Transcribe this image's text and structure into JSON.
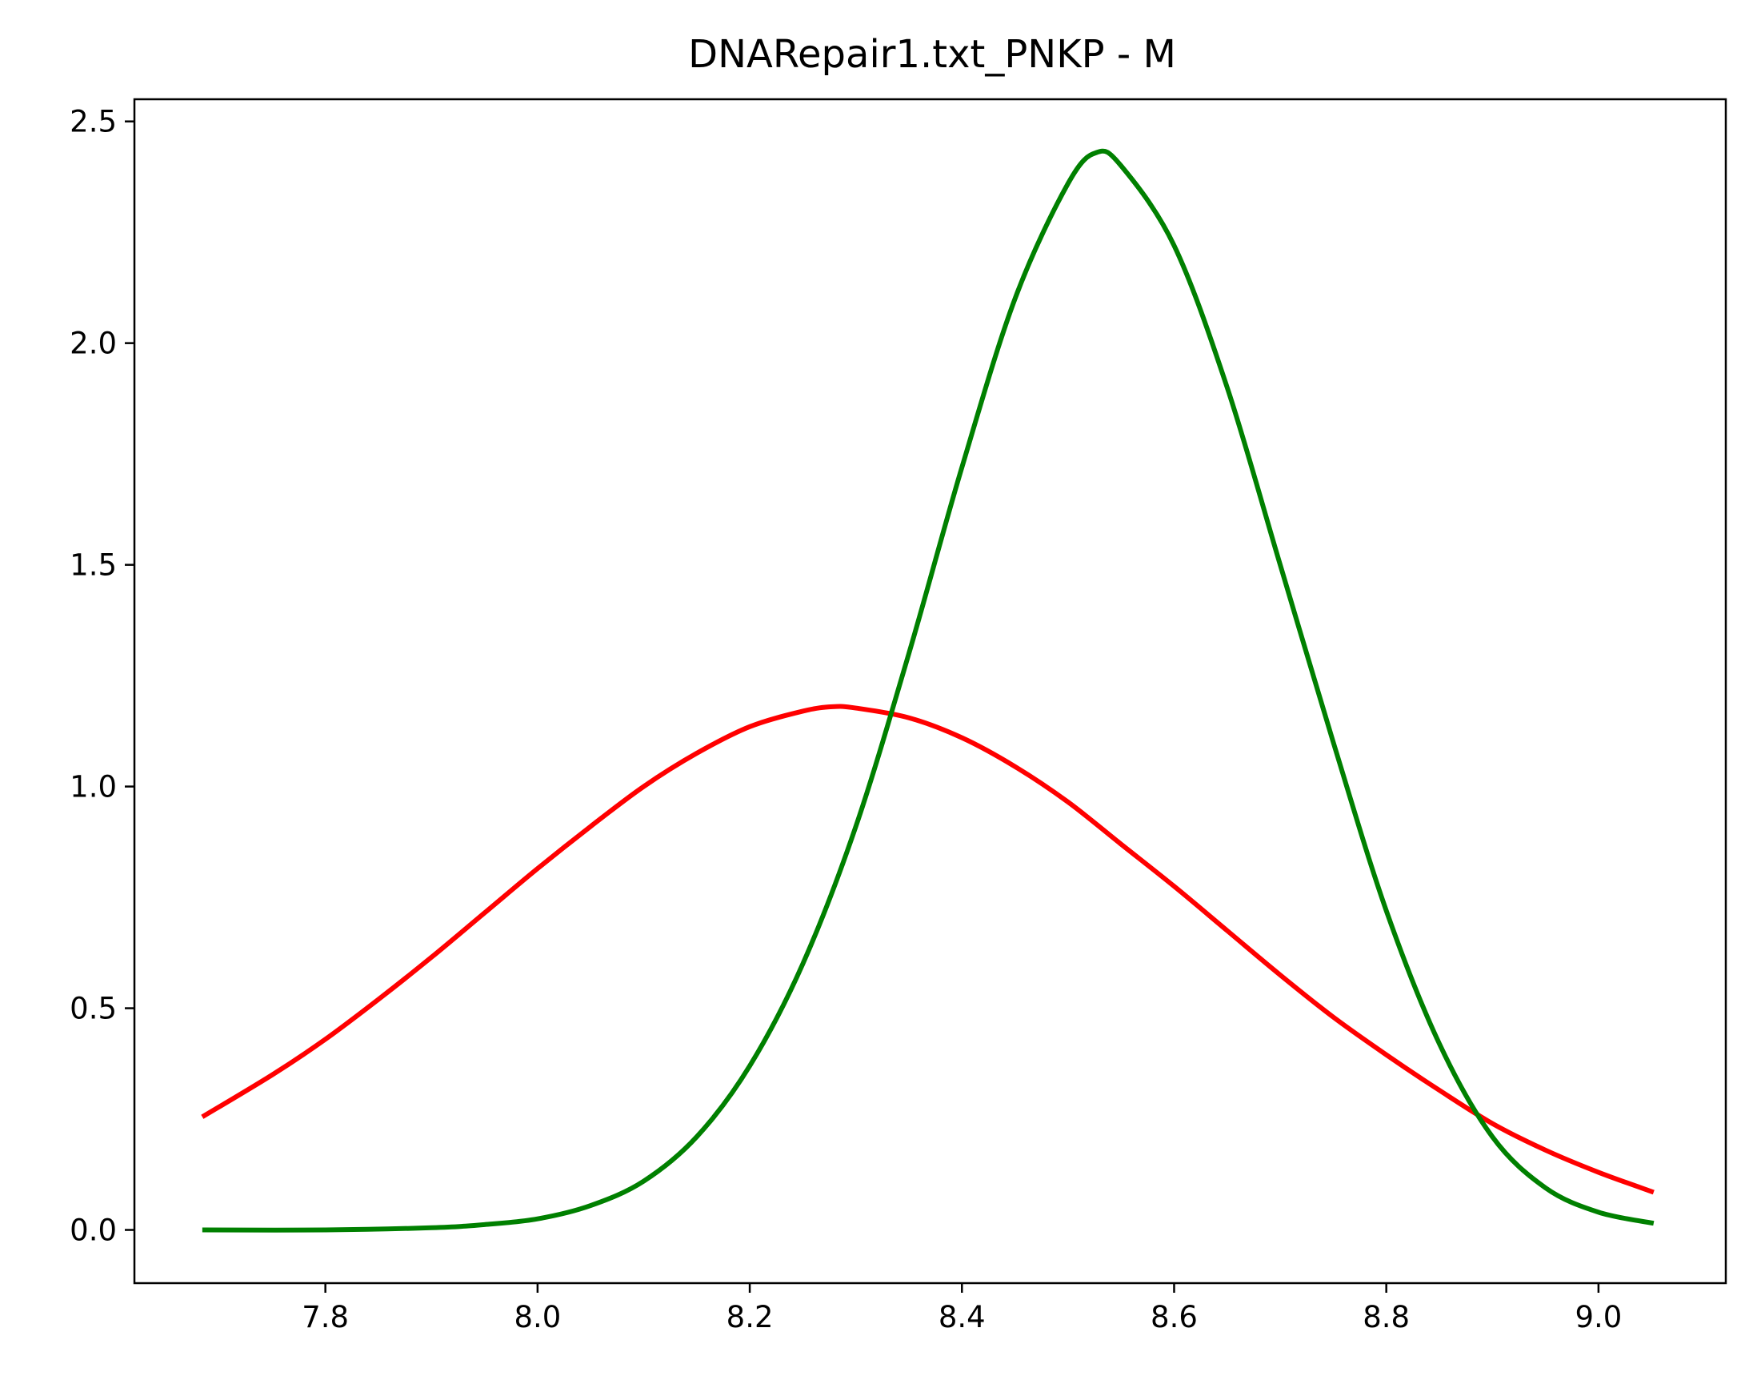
{
  "chart_data": {
    "type": "line",
    "title": "DNARepair1.txt_PNKP - M",
    "xlabel": "",
    "ylabel": "",
    "xlim": [
      7.62,
      9.12
    ],
    "ylim": [
      -0.12,
      2.55
    ],
    "xticks": [
      7.8,
      8.0,
      8.2,
      8.4,
      8.6,
      8.8,
      9.0
    ],
    "xtick_labels": [
      "7.8",
      "8.0",
      "8.2",
      "8.4",
      "8.6",
      "8.8",
      "9.0"
    ],
    "yticks": [
      0.0,
      0.5,
      1.0,
      1.5,
      2.0,
      2.5
    ],
    "ytick_labels": [
      "0.0",
      "0.5",
      "1.0",
      "1.5",
      "2.0",
      "2.5"
    ],
    "grid": false,
    "legend": "none",
    "series": [
      {
        "color": "#ff0000",
        "points": [
          [
            7.684,
            0.255
          ],
          [
            7.75,
            0.35
          ],
          [
            7.8,
            0.43
          ],
          [
            7.85,
            0.52
          ],
          [
            7.9,
            0.615
          ],
          [
            7.95,
            0.715
          ],
          [
            8.0,
            0.815
          ],
          [
            8.05,
            0.91
          ],
          [
            8.1,
            1.0
          ],
          [
            8.15,
            1.075
          ],
          [
            8.2,
            1.135
          ],
          [
            8.25,
            1.17
          ],
          [
            8.278,
            1.18
          ],
          [
            8.3,
            1.177
          ],
          [
            8.35,
            1.155
          ],
          [
            8.4,
            1.11
          ],
          [
            8.45,
            1.045
          ],
          [
            8.5,
            0.965
          ],
          [
            8.55,
            0.87
          ],
          [
            8.6,
            0.775
          ],
          [
            8.65,
            0.675
          ],
          [
            8.7,
            0.575
          ],
          [
            8.75,
            0.48
          ],
          [
            8.8,
            0.395
          ],
          [
            8.85,
            0.315
          ],
          [
            8.9,
            0.24
          ],
          [
            8.95,
            0.18
          ],
          [
            9.0,
            0.13
          ],
          [
            9.052,
            0.085
          ]
        ]
      },
      {
        "color": "#008000",
        "points": [
          [
            7.684,
            0.0
          ],
          [
            7.8,
            0.0
          ],
          [
            7.9,
            0.005
          ],
          [
            7.95,
            0.012
          ],
          [
            8.0,
            0.025
          ],
          [
            8.05,
            0.055
          ],
          [
            8.1,
            0.11
          ],
          [
            8.15,
            0.21
          ],
          [
            8.2,
            0.37
          ],
          [
            8.25,
            0.6
          ],
          [
            8.3,
            0.91
          ],
          [
            8.35,
            1.3
          ],
          [
            8.4,
            1.72
          ],
          [
            8.45,
            2.1
          ],
          [
            8.5,
            2.36
          ],
          [
            8.527,
            2.43
          ],
          [
            8.55,
            2.4
          ],
          [
            8.6,
            2.22
          ],
          [
            8.65,
            1.9
          ],
          [
            8.7,
            1.5
          ],
          [
            8.75,
            1.1
          ],
          [
            8.8,
            0.72
          ],
          [
            8.85,
            0.42
          ],
          [
            8.9,
            0.21
          ],
          [
            8.95,
            0.095
          ],
          [
            9.0,
            0.04
          ],
          [
            9.052,
            0.015
          ]
        ]
      }
    ]
  }
}
